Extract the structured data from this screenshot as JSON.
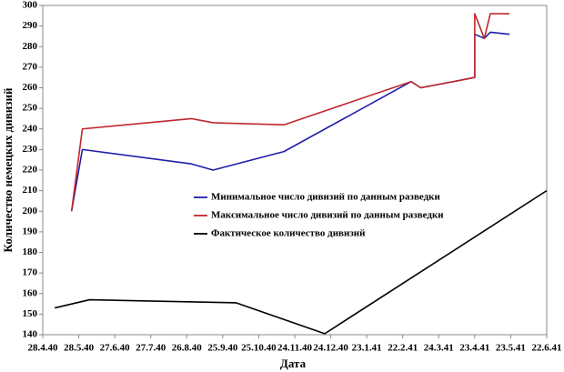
{
  "chart_data": {
    "type": "line",
    "x_label": "Дата",
    "y_label": "Количество немецких дивизий",
    "xlim": [
      "1940-04-28",
      "1941-06-22"
    ],
    "xticks": [
      {
        "value": "1940-04-28",
        "label": "28.4.40"
      },
      {
        "value": "1940-05-28",
        "label": "28.5.40"
      },
      {
        "value": "1940-06-27",
        "label": "27.6.40"
      },
      {
        "value": "1940-07-27",
        "label": "27.7.40"
      },
      {
        "value": "1940-08-26",
        "label": "26.8.40"
      },
      {
        "value": "1940-09-25",
        "label": "25.9.40"
      },
      {
        "value": "1940-10-25",
        "label": "25.10.40"
      },
      {
        "value": "1940-11-24",
        "label": "24.11.40"
      },
      {
        "value": "1940-12-24",
        "label": "24.12.40"
      },
      {
        "value": "1941-01-23",
        "label": "23.1.41"
      },
      {
        "value": "1941-02-22",
        "label": "22.2.41"
      },
      {
        "value": "1941-03-24",
        "label": "24.3.41"
      },
      {
        "value": "1941-04-23",
        "label": "23.4.41"
      },
      {
        "value": "1941-05-23",
        "label": "23.5.41"
      },
      {
        "value": "1941-06-22",
        "label": "22.6.41"
      }
    ],
    "ylim": [
      140,
      300
    ],
    "yticks": [
      140,
      150,
      160,
      170,
      180,
      190,
      200,
      210,
      220,
      230,
      240,
      250,
      260,
      270,
      280,
      290,
      300
    ],
    "series": [
      {
        "name": "Минимальное число дивизий по данным разведки",
        "color": "#1f1fa8",
        "x": [
          "1940-05-22",
          "1940-05-31",
          "1940-08-30",
          "1940-09-17",
          "1940-11-15",
          "1941-03-01",
          "1941-03-09",
          "1941-04-23",
          "1941-04-23",
          "1941-05-01",
          "1941-05-06",
          "1941-05-22"
        ],
        "values": [
          200,
          230,
          223,
          220,
          229,
          263,
          260,
          265,
          286,
          284,
          287,
          286
        ]
      },
      {
        "name": "Максимальное число дивизий по данным разведки",
        "color": "#c0282d",
        "x": [
          "1940-05-22",
          "1940-05-31",
          "1940-08-30",
          "1940-09-17",
          "1940-11-15",
          "1941-03-01",
          "1941-03-09",
          "1941-04-23",
          "1941-04-23",
          "1941-05-01",
          "1941-05-06",
          "1941-05-22"
        ],
        "values": [
          200,
          240,
          245,
          243,
          242,
          263,
          260,
          265,
          296,
          284,
          296,
          296
        ]
      },
      {
        "name": "Фактическое количество дивизий",
        "color": "#000000",
        "x": [
          "1940-05-08",
          "1940-06-06",
          "1940-10-06",
          "1940-12-19",
          "1941-06-22"
        ],
        "values": [
          153,
          157,
          155.5,
          140.5,
          210
        ]
      }
    ]
  }
}
